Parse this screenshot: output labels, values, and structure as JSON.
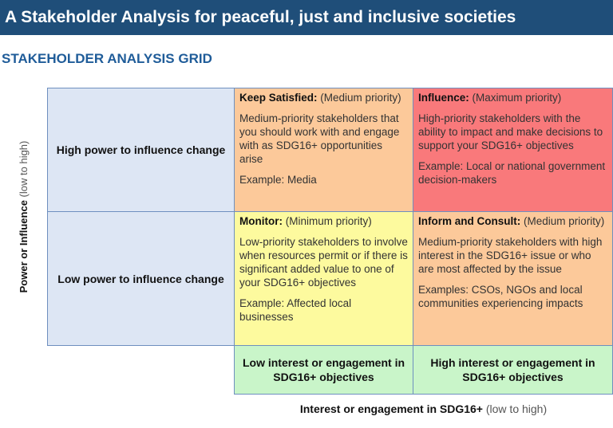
{
  "banner": {
    "title": "A Stakeholder Analysis for peaceful, just and inclusive societies"
  },
  "grid": {
    "title": "STAKEHOLDER ANALYSIS GRID",
    "y_axis": {
      "label": "Power or Influence",
      "hint": "(low to high)"
    },
    "x_axis": {
      "label": "Interest or engagement in SDG16+",
      "hint": "(low to high)"
    },
    "rows": {
      "high": "High power to influence change",
      "low": "Low power to influence change"
    },
    "columns": {
      "low": "Low interest or engagement in SDG16+ objectives",
      "high": "High interest or engagement in SDG16+ objectives"
    },
    "cells": {
      "keep_satisfied": {
        "heading": "Keep Satisfied:",
        "priority": "(Medium priority)",
        "description": "Medium-priority stakeholders that you should work with and engage with as SDG16+ opportunities arise",
        "example": "Example: Media",
        "color": "#fcc99a"
      },
      "influence": {
        "heading": "Influence:",
        "priority": "(Maximum priority)",
        "description": "High-priority stakeholders with the ability to impact and make decisions to support your SDG16+ objectives",
        "example": "Example: Local or national government decision-makers",
        "color": "#f9797b"
      },
      "monitor": {
        "heading": "Monitor:",
        "priority": "(Minimum priority)",
        "description": "Low-priority stakeholders to involve when resources permit or if there is significant added value to one of your SDG16+ objectives",
        "example": "Example: Affected local businesses",
        "color": "#fdfa9e"
      },
      "inform_consult": {
        "heading": "Inform and Consult:",
        "priority": "(Medium priority)",
        "description": "Medium-priority stakeholders with high interest in the SDG16+ issue or who are most affected by the issue",
        "example": "Examples: CSOs, NGOs and local communities experiencing impacts",
        "color": "#fcc99a"
      }
    }
  }
}
